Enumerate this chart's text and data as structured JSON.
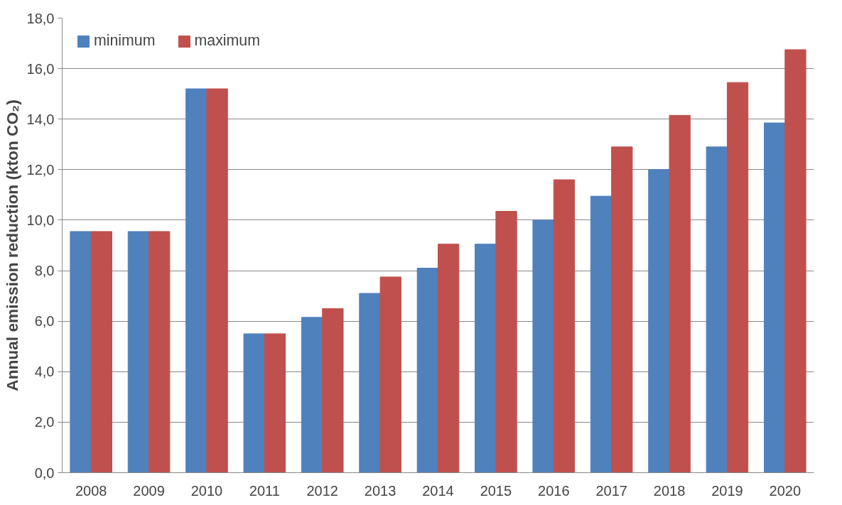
{
  "chart_data": {
    "type": "bar",
    "ylabel": "Annual emission reduction (kton CO₂)",
    "categories": [
      "2008",
      "2009",
      "2010",
      "2011",
      "2012",
      "2013",
      "2014",
      "2015",
      "2016",
      "2017",
      "2018",
      "2019",
      "2020"
    ],
    "series": [
      {
        "name": "minimum",
        "color": "#4f81bd",
        "values": [
          9.55,
          9.55,
          15.2,
          5.5,
          6.15,
          7.1,
          8.1,
          9.05,
          10.0,
          10.95,
          12.0,
          12.9,
          13.85
        ]
      },
      {
        "name": "maximum",
        "color": "#c0504d",
        "values": [
          9.55,
          9.55,
          15.2,
          5.5,
          6.5,
          7.75,
          9.05,
          10.35,
          11.6,
          12.9,
          14.15,
          15.45,
          16.75
        ]
      }
    ],
    "ylim": [
      0,
      18
    ],
    "yticks": [
      {
        "value": 0,
        "label": "0,0"
      },
      {
        "value": 2,
        "label": "2,0"
      },
      {
        "value": 4,
        "label": "4,0"
      },
      {
        "value": 6,
        "label": "6,0"
      },
      {
        "value": 8,
        "label": "8,0"
      },
      {
        "value": 10,
        "label": "10,0"
      },
      {
        "value": 12,
        "label": "12,0"
      },
      {
        "value": 14,
        "label": "14,0"
      },
      {
        "value": 16,
        "label": "16,0"
      },
      {
        "value": 18,
        "label": "18,0"
      }
    ],
    "grid": "y",
    "legend": "top left"
  }
}
